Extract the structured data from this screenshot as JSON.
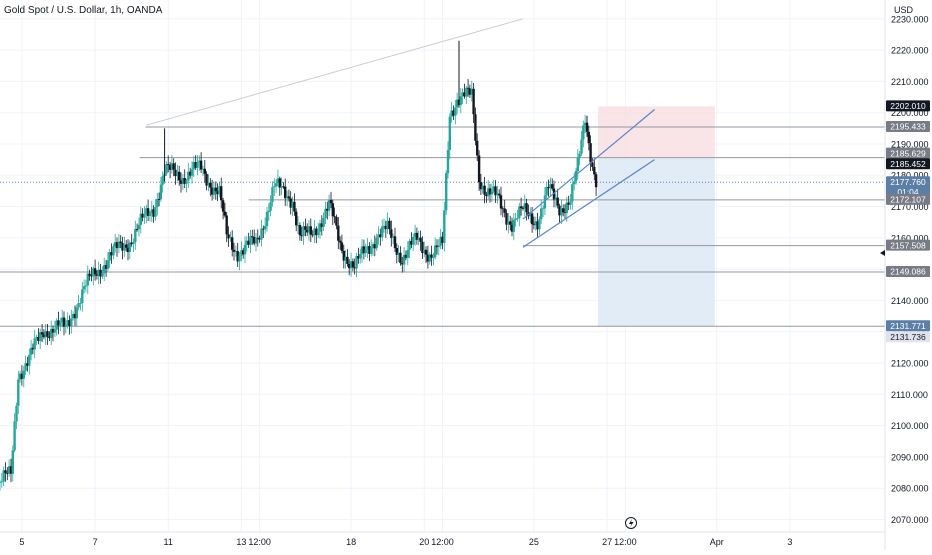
{
  "header": {
    "title": "Gold Spot / U.S. Dollar, 1h, OANDA",
    "currency": "USD"
  },
  "colors": {
    "up": "#26a69a",
    "down": "#131722",
    "grid": "#f0f3fa",
    "hline": "#9598a1",
    "trendline": "#c9cbd1",
    "channel": "#5b86c4",
    "stop_zone": "#f7dde1",
    "target_zone": "#dce9f5",
    "last_price_bg": "#131722",
    "price_tag_bg": "#787b86",
    "countdown_bg": "#5b7fa6"
  },
  "chart_data": {
    "type": "candlestick",
    "symbol": "Gold Spot / U.S. Dollar",
    "interval": "1h",
    "source": "OANDA",
    "ylim": [
      2066,
      2236
    ],
    "y_ticks": [
      2070,
      2080,
      2090,
      2100,
      2110,
      2120,
      2130,
      2140,
      2150,
      2160,
      2170,
      2180,
      2190,
      2200,
      2210,
      2220,
      2230
    ],
    "y_tick_labels": [
      "2070.000",
      "2080.000",
      "2090.000",
      "2100.000",
      "2110.000",
      "2120.000",
      "2130.000",
      "2140.000",
      "2150.000",
      "2160.000",
      "2170.000",
      "2180.000",
      "2190.000",
      "2200.000",
      "2210.000",
      "2220.000",
      "2230.000"
    ],
    "x_ticks": [
      {
        "label": "5",
        "t": 0.6
      },
      {
        "label": "7",
        "t": 2.6
      },
      {
        "label": "11",
        "t": 4.6
      },
      {
        "label": "13",
        "t": 6.6
      },
      {
        "label": "12:00",
        "t": 7.1
      },
      {
        "label": "18",
        "t": 9.6
      },
      {
        "label": "20",
        "t": 11.6
      },
      {
        "label": "12:00",
        "t": 12.1
      },
      {
        "label": "25",
        "t": 14.6
      },
      {
        "label": "27",
        "t": 16.6
      },
      {
        "label": "12:00",
        "t": 17.1
      },
      {
        "label": "Apr",
        "t": 19.6
      },
      {
        "label": "3",
        "t": 21.6
      }
    ],
    "xlim": [
      0,
      24.2
    ],
    "path": [
      [
        0.0,
        2082
      ],
      [
        0.3,
        2084
      ],
      [
        0.5,
        2117
      ],
      [
        0.8,
        2121
      ],
      [
        1.2,
        2131
      ],
      [
        1.8,
        2131
      ],
      [
        2.0,
        2137
      ],
      [
        2.6,
        2149
      ],
      [
        3.2,
        2156
      ],
      [
        3.6,
        2160
      ],
      [
        4.2,
        2170
      ],
      [
        4.5,
        2181
      ],
      [
        5.0,
        2180
      ],
      [
        5.5,
        2182
      ],
      [
        6.0,
        2174
      ],
      [
        6.2,
        2160
      ],
      [
        6.5,
        2156
      ],
      [
        7.0,
        2158
      ],
      [
        7.5,
        2176
      ],
      [
        8.0,
        2173
      ],
      [
        8.2,
        2160
      ],
      [
        8.5,
        2161
      ],
      [
        9.0,
        2170
      ],
      [
        9.3,
        2158
      ],
      [
        9.7,
        2150
      ],
      [
        10.0,
        2156
      ],
      [
        10.3,
        2161
      ],
      [
        10.6,
        2162
      ],
      [
        11.0,
        2154
      ],
      [
        11.4,
        2159
      ],
      [
        11.8,
        2155
      ],
      [
        12.1,
        2157
      ],
      [
        12.3,
        2200
      ],
      [
        12.5,
        2205
      ],
      [
        12.9,
        2205
      ],
      [
        13.1,
        2180
      ],
      [
        13.3,
        2175
      ],
      [
        13.6,
        2172
      ],
      [
        14.0,
        2165
      ],
      [
        14.3,
        2168
      ],
      [
        14.7,
        2166
      ],
      [
        15.0,
        2175
      ],
      [
        15.3,
        2170
      ],
      [
        15.6,
        2172
      ],
      [
        15.8,
        2182
      ],
      [
        16.0,
        2199
      ],
      [
        16.2,
        2184
      ],
      [
        16.3,
        2178
      ]
    ],
    "marked_candles": [
      {
        "t": 4.5,
        "high": 2195
      },
      {
        "t": 12.55,
        "high": 2223
      },
      {
        "t": 16.05,
        "high": 2199
      }
    ],
    "horizontal_levels": [
      {
        "value": 2195.433,
        "x_start": 3.98
      },
      {
        "value": 2185.629,
        "x_start": 3.82
      },
      {
        "value": 2172.107,
        "x_start": 6.8
      },
      {
        "value": 2157.508,
        "x_start": 14.3
      },
      {
        "value": 2149.086,
        "x_start": 0
      },
      {
        "value": 2131.771,
        "x_start": 0
      }
    ],
    "dotted_levels": [
      2177.76
    ],
    "trendline": {
      "from": [
        4.0,
        2196
      ],
      "to": [
        14.3,
        2230
      ]
    },
    "channel": {
      "upper": {
        "from": [
          14.3,
          2166
        ],
        "to": [
          17.9,
          2201
        ]
      },
      "lower": {
        "from": [
          14.3,
          2157
        ],
        "to": [
          17.9,
          2185
        ]
      }
    },
    "position": {
      "t_start": 16.35,
      "t_end": 19.55,
      "stop": 2202.01,
      "entry": 2185.452,
      "target": 2131.771
    },
    "price_tags": [
      {
        "value": 2202.01,
        "label": "2202.010",
        "style": "dark"
      },
      {
        "value": 2195.433,
        "label": "2195.433",
        "style": "grey"
      },
      {
        "value": 2185.629,
        "label": "2185.629",
        "style": "grey"
      },
      {
        "value": 2185.452,
        "label": "2185.452",
        "style": "dark"
      },
      {
        "value": 2177.76,
        "label": "2177.760",
        "style": "blue",
        "sublabel": "01:04"
      },
      {
        "value": 2172.107,
        "label": "2172.107",
        "style": "grey"
      },
      {
        "value": 2157.508,
        "label": "2157.508",
        "style": "grey"
      },
      {
        "value": 2149.086,
        "label": "2149.086",
        "style": "grey"
      },
      {
        "value": 2131.771,
        "label": "2131.771",
        "style": "blue"
      },
      {
        "value": 2131.736,
        "label": "2131.736",
        "style": "light"
      }
    ],
    "last_price": 2177.76
  }
}
